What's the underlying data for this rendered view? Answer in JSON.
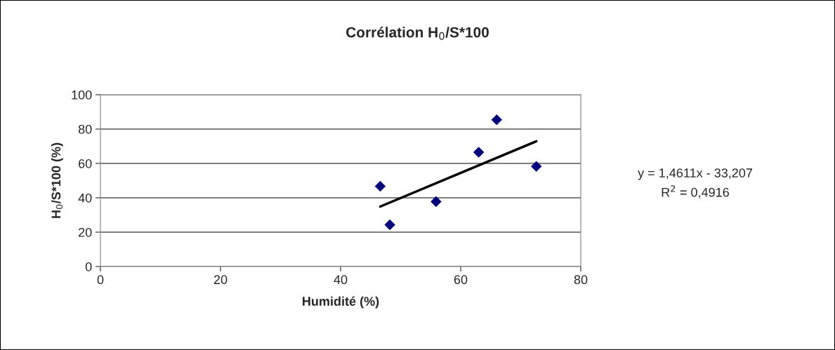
{
  "chart_data": {
    "type": "scatter",
    "title": "Corrélation H$_{0}$/S*100",
    "xlabel": "Humidité (%)",
    "ylabel": "H$_{0}$/S*100 (%)",
    "xlim": [
      0,
      80
    ],
    "xticks": [
      0,
      20,
      40,
      60,
      80
    ],
    "ylim": [
      0,
      100
    ],
    "yticks": [
      0,
      20,
      40,
      60,
      80,
      100
    ],
    "grid": "y",
    "legend": false,
    "series": [
      {
        "marker": "diamond",
        "color": "#000080",
        "x": [
          46.6,
          48.2,
          55.9,
          63.0,
          66.0,
          72.6
        ],
        "values": [
          46.7,
          24.3,
          37.8,
          66.5,
          85.4,
          58.3
        ]
      },
      {
        "type": "line",
        "marker": "none",
        "color": "#000000",
        "x": [
          46.6,
          72.6
        ],
        "values": [
          34.9,
          72.9
        ]
      }
    ],
    "annotations": [
      "y = 1,4611x - 33,207\nR$^{2}$ = 0,4916"
    ]
  }
}
